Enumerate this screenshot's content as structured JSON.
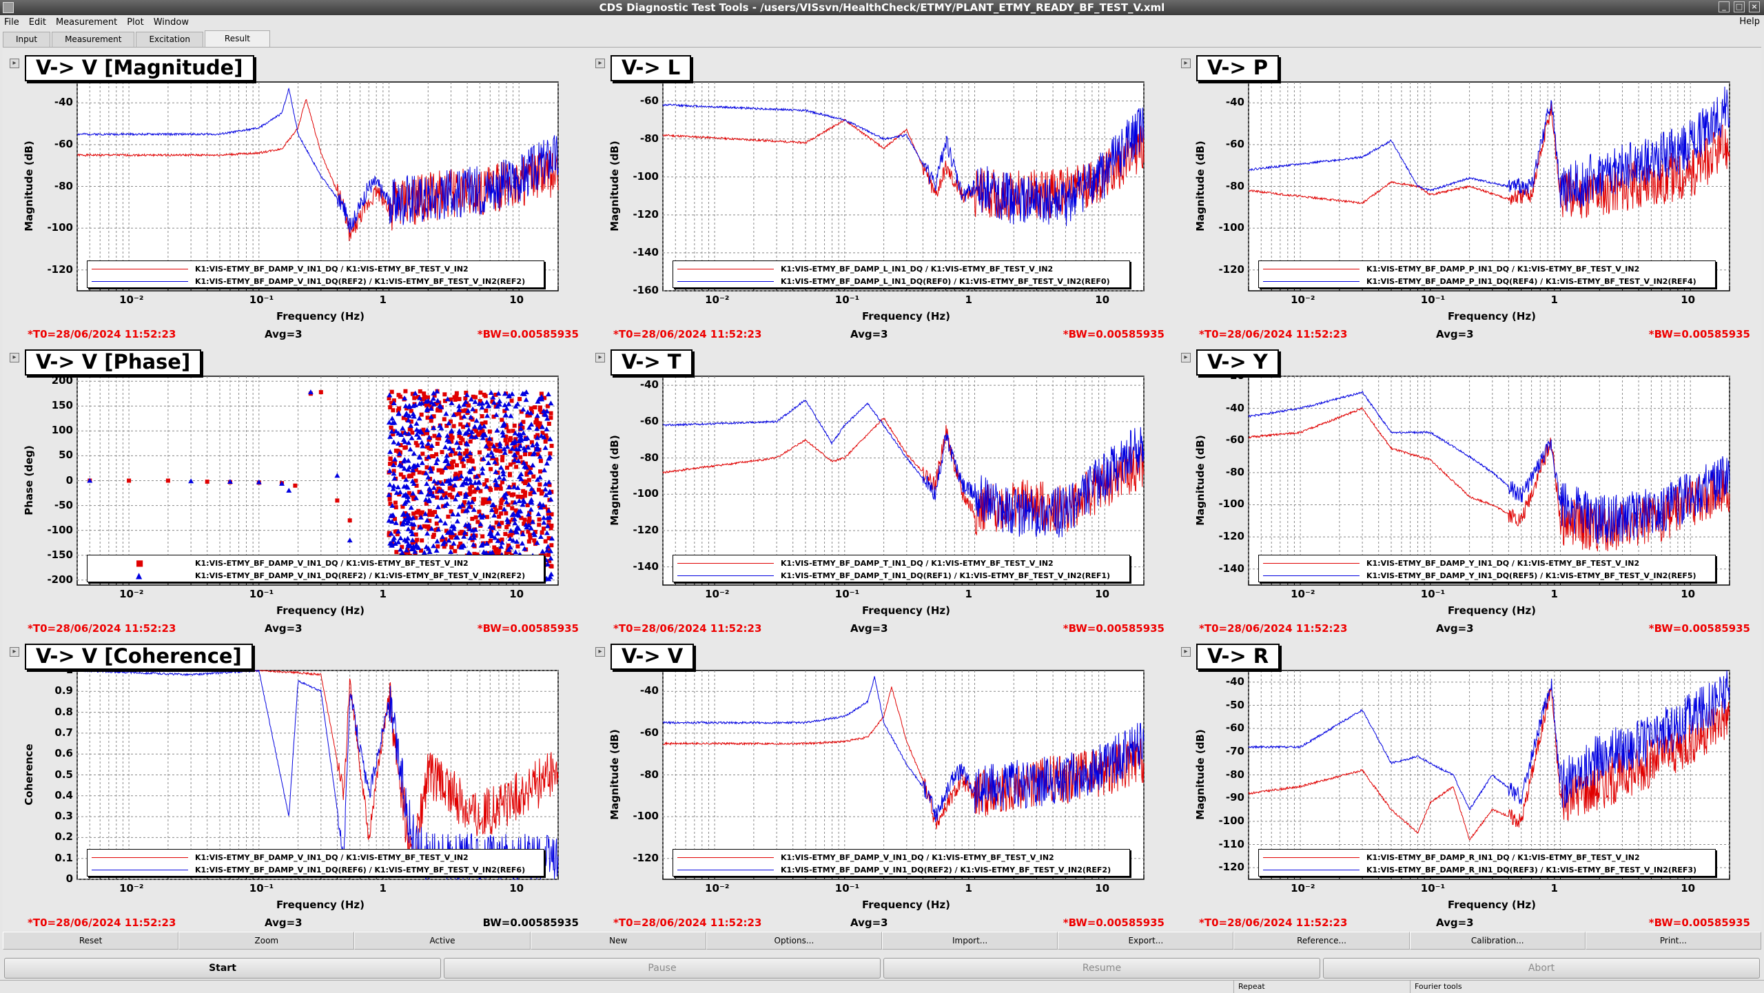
{
  "window": {
    "title": "CDS Diagnostic Test Tools - /users/VISsvn/HealthCheck/ETMY/PLANT_ETMY_READY_BF_TEST_V.xml",
    "help": "Help"
  },
  "menu": [
    "File",
    "Edit",
    "Measurement",
    "Plot",
    "Window"
  ],
  "tabs": [
    "Input",
    "Measurement",
    "Excitation",
    "Result"
  ],
  "active_tab": "Result",
  "xlabel": "Frequency (Hz)",
  "footer": {
    "t0": "*T0=28/06/2024 11:52:23",
    "avg": "Avg=3",
    "bw": "*BW=0.00585935",
    "bw_plain": "BW=0.00585935"
  },
  "colors": {
    "ref": "#e00000",
    "live": "#0000e0"
  },
  "chart_data": [
    {
      "type": "line",
      "title": "V-> V [Magnitude]",
      "ylabel": "Magnitude (dB)",
      "xlabel": "Frequency (Hz)",
      "xscale": "log",
      "xlim": [
        0.004,
        20
      ],
      "ylim": [
        -130,
        -30
      ],
      "yticks": [
        "-40",
        "-60",
        "-80",
        "-100",
        "-120"
      ],
      "series": [
        {
          "name": "K1:VIS-ETMY_BF_DAMP_V_IN1_DQ / K1:VIS-ETMY_BF_TEST_V_IN2",
          "color": "red",
          "x": [
            0.004,
            0.05,
            0.1,
            0.15,
            0.2,
            0.23,
            0.3,
            0.45,
            0.5,
            0.6,
            0.8,
            1,
            2,
            5,
            10,
            18
          ],
          "y": [
            -65,
            -65,
            -64,
            -62,
            -52,
            -38,
            -64,
            -90,
            -104,
            -95,
            -82,
            -90,
            -85,
            -82,
            -78,
            -74
          ]
        },
        {
          "name": "K1:VIS-ETMY_BF_DAMP_V_IN1_DQ(REF2) / K1:VIS-ETMY_BF_TEST_V_IN2(REF2)",
          "color": "blue",
          "x": [
            0.004,
            0.05,
            0.1,
            0.15,
            0.17,
            0.2,
            0.3,
            0.45,
            0.5,
            0.7,
            0.8,
            1,
            2,
            5,
            10,
            18
          ],
          "y": [
            -55,
            -55,
            -52,
            -45,
            -33,
            -55,
            -75,
            -90,
            -100,
            -80,
            -78,
            -88,
            -85,
            -82,
            -76,
            -66
          ]
        }
      ]
    },
    {
      "type": "line",
      "title": "V-> L",
      "ylabel": "Magnitude (dB)",
      "xlabel": "Frequency (Hz)",
      "xscale": "log",
      "xlim": [
        0.004,
        20
      ],
      "ylim": [
        -160,
        -50
      ],
      "yticks": [
        "-60",
        "-80",
        "-100",
        "-120",
        "-140",
        "-160"
      ],
      "series": [
        {
          "name": "K1:VIS-ETMY_BF_DAMP_L_IN1_DQ / K1:VIS-ETMY_BF_TEST_V_IN2",
          "color": "red",
          "x": [
            0.004,
            0.05,
            0.1,
            0.2,
            0.3,
            0.5,
            0.6,
            0.8,
            1,
            2,
            5,
            10,
            18
          ],
          "y": [
            -78,
            -82,
            -70,
            -85,
            -75,
            -110,
            -95,
            -110,
            -108,
            -110,
            -108,
            -100,
            -85
          ]
        },
        {
          "name": "K1:VIS-ETMY_BF_DAMP_L_IN1_DQ(REF0) / K1:VIS-ETMY_BF_TEST_V_IN2(REF0)",
          "color": "blue",
          "x": [
            0.004,
            0.05,
            0.1,
            0.2,
            0.3,
            0.5,
            0.6,
            0.8,
            1,
            2,
            5,
            10,
            18
          ],
          "y": [
            -62,
            -65,
            -70,
            -80,
            -78,
            -105,
            -80,
            -110,
            -105,
            -112,
            -115,
            -98,
            -75
          ]
        }
      ]
    },
    {
      "type": "line",
      "title": "V-> P",
      "ylabel": "Magnitude (dB)",
      "xlabel": "Frequency (Hz)",
      "xscale": "log",
      "xlim": [
        0.004,
        20
      ],
      "ylim": [
        -130,
        -30
      ],
      "yticks": [
        "-40",
        "-60",
        "-80",
        "-100",
        "-120"
      ],
      "series": [
        {
          "name": "K1:VIS-ETMY_BF_DAMP_P_IN1_DQ / K1:VIS-ETMY_BF_TEST_V_IN2",
          "color": "red",
          "x": [
            0.004,
            0.03,
            0.05,
            0.08,
            0.1,
            0.2,
            0.4,
            0.6,
            0.85,
            1,
            2,
            5,
            10,
            18
          ],
          "y": [
            -82,
            -88,
            -78,
            -80,
            -84,
            -80,
            -86,
            -84,
            -42,
            -85,
            -82,
            -78,
            -74,
            -62
          ]
        },
        {
          "name": "K1:VIS-ETMY_BF_DAMP_P_IN1_DQ(REF4) / K1:VIS-ETMY_BF_TEST_V_IN2(REF4)",
          "color": "blue",
          "x": [
            0.004,
            0.03,
            0.05,
            0.08,
            0.1,
            0.2,
            0.4,
            0.6,
            0.85,
            1,
            2,
            5,
            10,
            18
          ],
          "y": [
            -72,
            -66,
            -58,
            -80,
            -82,
            -76,
            -80,
            -80,
            -38,
            -82,
            -75,
            -68,
            -60,
            -44
          ]
        }
      ]
    },
    {
      "type": "scatter",
      "title": "V-> V [Phase]",
      "ylabel": "Phase (deg)",
      "xlabel": "Frequency (Hz)",
      "xscale": "log",
      "xlim": [
        0.004,
        20
      ],
      "ylim": [
        -210,
        210
      ],
      "yticks": [
        "200",
        "150",
        "100",
        "50",
        "0",
        "-50",
        "-100",
        "-150",
        "-200"
      ],
      "series": [
        {
          "name": "K1:VIS-ETMY_BF_DAMP_V_IN1_DQ / K1:VIS-ETMY_BF_TEST_V_IN2",
          "color": "red",
          "marker": "square",
          "x": [
            0.005,
            0.01,
            0.02,
            0.04,
            0.06,
            0.1,
            0.15,
            0.19,
            0.25,
            0.3,
            0.4,
            0.5
          ],
          "y": [
            0,
            0,
            0,
            -2,
            -3,
            -4,
            -5,
            -10,
            175,
            178,
            -40,
            -80
          ]
        },
        {
          "name": "K1:VIS-ETMY_BF_DAMP_V_IN1_DQ(REF2) / K1:VIS-ETMY_BF_TEST_V_IN2(REF2)",
          "color": "blue",
          "marker": "triangle",
          "x": [
            0.005,
            0.03,
            0.06,
            0.1,
            0.15,
            0.17,
            0.25,
            0.4,
            0.5
          ],
          "y": [
            0,
            -1,
            -2,
            -3,
            -6,
            -20,
            178,
            10,
            -120
          ]
        }
      ]
    },
    {
      "type": "line",
      "title": "V-> T",
      "ylabel": "Magnitude (dB)",
      "xlabel": "Frequency (Hz)",
      "xscale": "log",
      "xlim": [
        0.004,
        20
      ],
      "ylim": [
        -150,
        -35
      ],
      "yticks": [
        "-40",
        "-60",
        "-80",
        "-100",
        "-120",
        "-140"
      ],
      "series": [
        {
          "name": "K1:VIS-ETMY_BF_DAMP_T_IN1_DQ / K1:VIS-ETMY_BF_TEST_V_IN2",
          "color": "red",
          "x": [
            0.004,
            0.03,
            0.05,
            0.08,
            0.1,
            0.2,
            0.3,
            0.5,
            0.6,
            0.8,
            1,
            2,
            5,
            10,
            18
          ],
          "y": [
            -88,
            -80,
            -70,
            -82,
            -80,
            -58,
            -78,
            -95,
            -65,
            -100,
            -110,
            -105,
            -108,
            -95,
            -85
          ]
        },
        {
          "name": "K1:VIS-ETMY_BF_DAMP_T_IN1_DQ(REF1) / K1:VIS-ETMY_BF_TEST_V_IN2(REF1)",
          "color": "blue",
          "x": [
            0.004,
            0.03,
            0.05,
            0.08,
            0.1,
            0.15,
            0.2,
            0.3,
            0.5,
            0.6,
            0.8,
            1,
            2,
            5,
            10,
            18
          ],
          "y": [
            -62,
            -60,
            -48,
            -72,
            -62,
            -50,
            -62,
            -80,
            -100,
            -68,
            -95,
            -100,
            -110,
            -110,
            -90,
            -75
          ]
        }
      ]
    },
    {
      "type": "line",
      "title": "V-> Y",
      "ylabel": "Magnitude (dB)",
      "xlabel": "Frequency (Hz)",
      "xscale": "log",
      "xlim": [
        0.004,
        20
      ],
      "ylim": [
        -150,
        -20
      ],
      "yticks": [
        "-20",
        "-40",
        "-60",
        "-80",
        "-100",
        "-120",
        "-140"
      ],
      "series": [
        {
          "name": "K1:VIS-ETMY_BF_DAMP_Y_IN1_DQ / K1:VIS-ETMY_BF_TEST_V_IN2",
          "color": "red",
          "x": [
            0.004,
            0.01,
            0.03,
            0.05,
            0.1,
            0.2,
            0.3,
            0.5,
            0.85,
            1,
            2,
            5,
            10,
            18
          ],
          "y": [
            -58,
            -55,
            -40,
            -65,
            -72,
            -95,
            -100,
            -110,
            -60,
            -110,
            -115,
            -110,
            -100,
            -90
          ]
        },
        {
          "name": "K1:VIS-ETMY_BF_DAMP_Y_IN1_DQ(REF5) / K1:VIS-ETMY_BF_TEST_V_IN2(REF5)",
          "color": "blue",
          "x": [
            0.004,
            0.01,
            0.03,
            0.05,
            0.1,
            0.2,
            0.3,
            0.5,
            0.85,
            1,
            2,
            5,
            10,
            18
          ],
          "y": [
            -45,
            -40,
            -30,
            -55,
            -55,
            -70,
            -80,
            -95,
            -62,
            -100,
            -110,
            -105,
            -95,
            -85
          ]
        }
      ]
    },
    {
      "type": "line",
      "title": "V-> V [Coherence]",
      "ylabel": "Coherence",
      "xlabel": "Frequency (Hz)",
      "xscale": "log",
      "xlim": [
        0.004,
        20
      ],
      "ylim": [
        0,
        1
      ],
      "yticks": [
        "1",
        "0.9",
        "0.8",
        "0.7",
        "0.6",
        "0.5",
        "0.4",
        "0.3",
        "0.2",
        "0.1",
        "0"
      ],
      "series": [
        {
          "name": "K1:VIS-ETMY_BF_DAMP_V_IN1_DQ / K1:VIS-ETMY_BF_TEST_V_IN2",
          "color": "red",
          "x": [
            0.004,
            0.1,
            0.2,
            0.3,
            0.45,
            0.5,
            0.7,
            1,
            1.5,
            2,
            5,
            10,
            18
          ],
          "y": [
            1,
            1,
            0.99,
            0.98,
            0.4,
            0.95,
            0.2,
            0.9,
            0.05,
            0.5,
            0.3,
            0.4,
            0.5
          ]
        },
        {
          "name": "K1:VIS-ETMY_BF_DAMP_V_IN1_DQ(REF6) / K1:VIS-ETMY_BF_TEST_V_IN2(REF6)",
          "color": "blue",
          "x": [
            0.004,
            0.03,
            0.1,
            0.17,
            0.2,
            0.3,
            0.45,
            0.5,
            0.7,
            1,
            1.5,
            2
          ],
          "y": [
            1,
            0.98,
            1,
            0.3,
            0.95,
            0.9,
            0.1,
            0.9,
            0.4,
            0.85,
            0.2,
            0.1
          ]
        }
      ]
    },
    {
      "type": "line",
      "title": "V-> V",
      "ylabel": "Magnitude (dB)",
      "xlabel": "Frequency (Hz)",
      "xscale": "log",
      "xlim": [
        0.004,
        20
      ],
      "ylim": [
        -130,
        -30
      ],
      "yticks": [
        "-40",
        "-60",
        "-80",
        "-100",
        "-120"
      ],
      "series": [
        {
          "name": "K1:VIS-ETMY_BF_DAMP_V_IN1_DQ / K1:VIS-ETMY_BF_TEST_V_IN2",
          "color": "red",
          "x": [
            0.004,
            0.05,
            0.1,
            0.15,
            0.2,
            0.23,
            0.3,
            0.45,
            0.5,
            0.6,
            0.8,
            1,
            2,
            5,
            10,
            18
          ],
          "y": [
            -65,
            -65,
            -64,
            -62,
            -52,
            -38,
            -64,
            -90,
            -104,
            -95,
            -82,
            -90,
            -85,
            -82,
            -78,
            -74
          ]
        },
        {
          "name": "K1:VIS-ETMY_BF_DAMP_V_IN1_DQ(REF2) / K1:VIS-ETMY_BF_TEST_V_IN2(REF2)",
          "color": "blue",
          "x": [
            0.004,
            0.05,
            0.1,
            0.15,
            0.17,
            0.2,
            0.3,
            0.45,
            0.5,
            0.7,
            0.8,
            1,
            2,
            5,
            10,
            18
          ],
          "y": [
            -55,
            -55,
            -52,
            -45,
            -33,
            -55,
            -75,
            -90,
            -100,
            -80,
            -78,
            -88,
            -85,
            -82,
            -76,
            -66
          ]
        }
      ]
    },
    {
      "type": "line",
      "title": "V-> R",
      "ylabel": "Magnitude (dB)",
      "xlabel": "Frequency (Hz)",
      "xscale": "log",
      "xlim": [
        0.004,
        20
      ],
      "ylim": [
        -125,
        -35
      ],
      "yticks": [
        "-40",
        "-50",
        "-60",
        "-70",
        "-80",
        "-90",
        "-100",
        "-110",
        "-120"
      ],
      "series": [
        {
          "name": "K1:VIS-ETMY_BF_DAMP_R_IN1_DQ / K1:VIS-ETMY_BF_TEST_V_IN2",
          "color": "red",
          "x": [
            0.004,
            0.01,
            0.03,
            0.05,
            0.08,
            0.1,
            0.15,
            0.2,
            0.3,
            0.5,
            0.85,
            1,
            2,
            5,
            10,
            18
          ],
          "y": [
            -88,
            -85,
            -78,
            -95,
            -105,
            -92,
            -85,
            -108,
            -95,
            -100,
            -42,
            -90,
            -85,
            -75,
            -65,
            -55
          ]
        },
        {
          "name": "K1:VIS-ETMY_BF_DAMP_R_IN1_DQ(REF3) / K1:VIS-ETMY_BF_TEST_V_IN2(REF3)",
          "color": "blue",
          "x": [
            0.004,
            0.01,
            0.03,
            0.05,
            0.08,
            0.1,
            0.15,
            0.2,
            0.3,
            0.5,
            0.85,
            1,
            2,
            5,
            10,
            18
          ],
          "y": [
            -68,
            -68,
            -52,
            -75,
            -72,
            -75,
            -80,
            -95,
            -80,
            -90,
            -40,
            -85,
            -72,
            -65,
            -55,
            -45
          ]
        }
      ]
    }
  ],
  "xticks": [
    "10⁻²",
    "10⁻¹",
    "1",
    "10"
  ],
  "toolbar": [
    "Reset",
    "Zoom",
    "Active",
    "New",
    "Options...",
    "Import...",
    "Export...",
    "Reference...",
    "Calibration...",
    "Print..."
  ],
  "controls": [
    "Start",
    "Pause",
    "Resume",
    "Abort"
  ],
  "status": [
    "Repeat",
    "Fourier tools"
  ]
}
